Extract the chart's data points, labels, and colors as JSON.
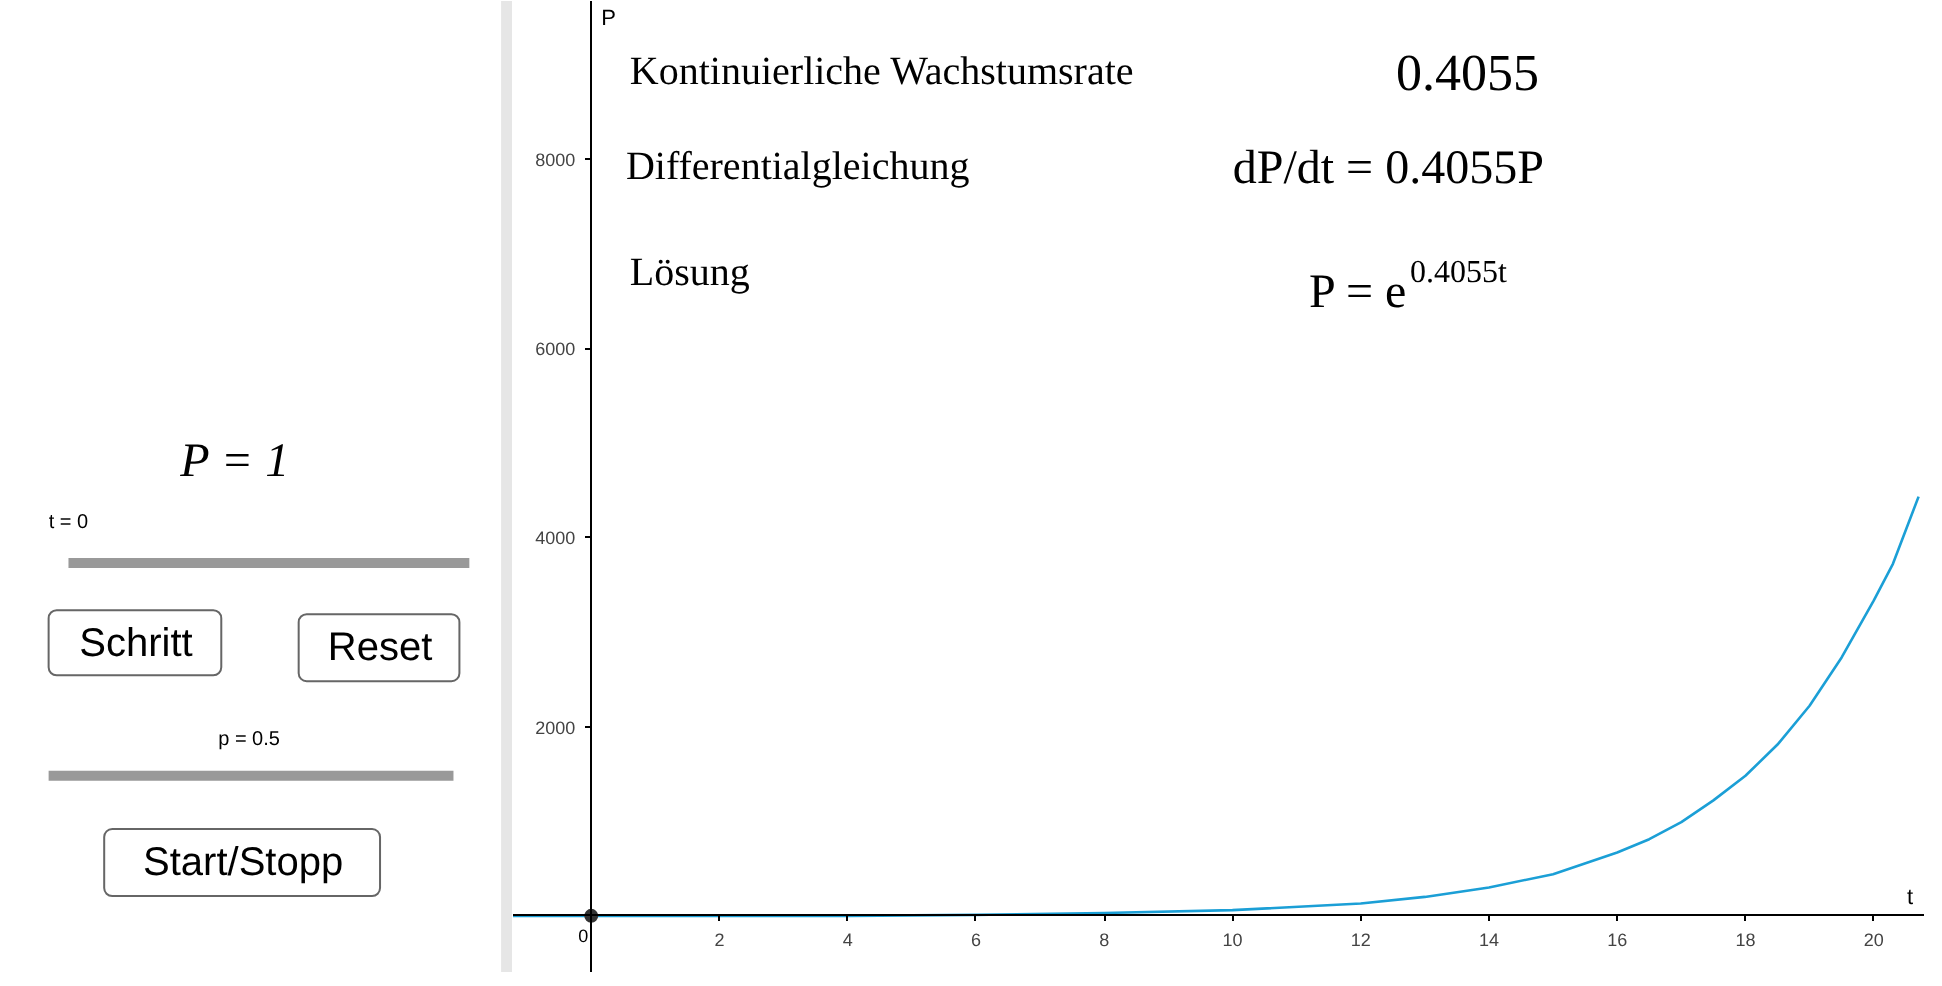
{
  "chart_data": [
    {
      "type": "other",
      "annotations": [
        "P = 1",
        "t = 0",
        "Schritt",
        "Reset",
        "p = 0.5",
        "Start/Stopp"
      ]
    },
    {
      "type": "line",
      "xlabel": "t",
      "ylabel": "P",
      "xlim": [
        -1.22,
        20.8
      ],
      "ylim": [
        -604,
        9667
      ],
      "xticks": [
        0,
        2,
        4,
        6,
        8,
        10,
        12,
        14,
        16,
        18,
        20
      ],
      "yticks": [
        2000,
        4000,
        6000,
        8000
      ],
      "grid": false,
      "line_style": "solid",
      "annotations": [
        "Kontinuierliche Wachstumsrate",
        "0.4055",
        "Differentialgleichung",
        "dP/dt = 0.4055P",
        "Lösung",
        "P = e$^{0.4055t}$"
      ],
      "series": [
        {
          "type": "line",
          "color": "#1b9fd6",
          "x": [
            -1.22,
            0,
            2,
            4,
            6,
            8,
            10,
            12,
            13,
            14,
            15,
            16,
            16.5,
            17,
            17.5,
            18,
            18.5,
            19,
            19.5,
            20,
            20.3,
            20.7
          ],
          "values": [
            0,
            0,
            0,
            0,
            10,
            30,
            60,
            130,
            200,
            300,
            440,
            670,
            810,
            990,
            1220,
            1480,
            1810,
            2220,
            2730,
            3330,
            3720,
            4430
          ]
        },
        {
          "type": "scatter",
          "color": "#333333",
          "marker": "circle",
          "x": [
            0
          ],
          "values": [
            0
          ]
        }
      ]
    }
  ]
}
